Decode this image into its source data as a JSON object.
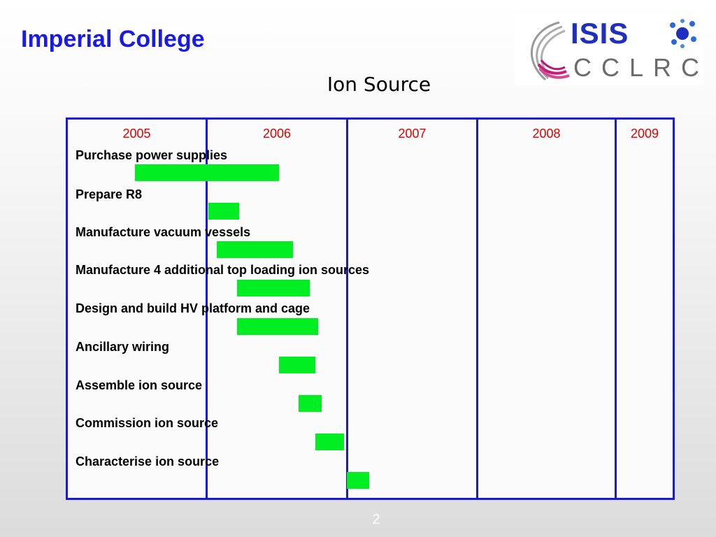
{
  "header": {
    "organization": "Imperial College"
  },
  "logo": {
    "text_top": "ISIS",
    "text_bottom": "CCLRC"
  },
  "slide": {
    "title": "Ion Source",
    "page_number": "2"
  },
  "gantt": {
    "years": [
      "2005",
      "2006",
      "2007",
      "2008",
      "2009"
    ],
    "tasks": [
      {
        "label": "Purchase power supplies"
      },
      {
        "label": "Prepare R8"
      },
      {
        "label": "Manufacture vacuum vessels"
      },
      {
        "label": "Manufacture 4 additional top loading ion sources"
      },
      {
        "label": "Design and build HV platform and cage"
      },
      {
        "label": "Ancillary wiring"
      },
      {
        "label": "Assemble ion source"
      },
      {
        "label": "Commission ion source"
      },
      {
        "label": "Characterise ion source"
      }
    ]
  },
  "colors": {
    "title": "#1a1ae6",
    "grid": "#1a1ad6",
    "year": "#e00000",
    "bar": "#00ee22"
  }
}
